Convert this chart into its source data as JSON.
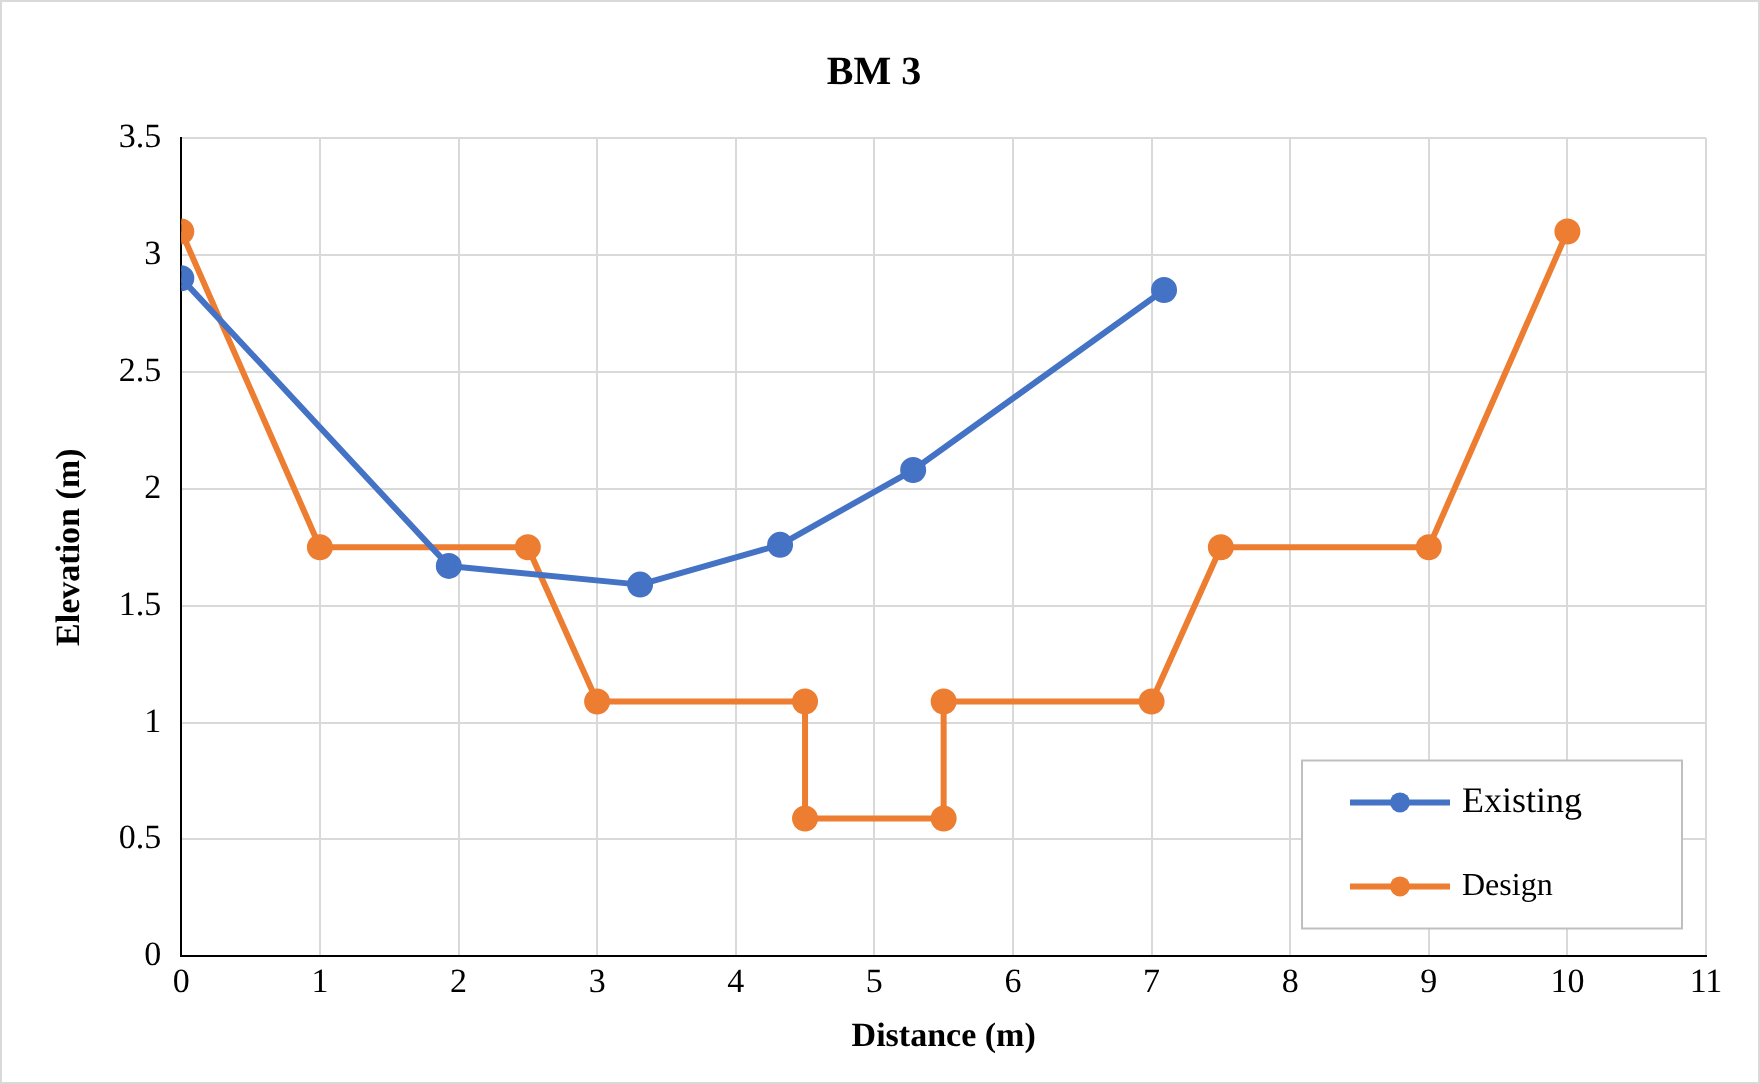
{
  "chart_data": {
    "type": "line",
    "title": "BM 3",
    "xlabel": "Distance (m)",
    "ylabel": "Elevation (m)",
    "xlim": [
      0,
      11
    ],
    "xticks": [
      0,
      1,
      2,
      3,
      4,
      5,
      6,
      7,
      8,
      9,
      10,
      11
    ],
    "ylim": [
      0,
      3.5
    ],
    "yticks": [
      0,
      0.5,
      1,
      1.5,
      2,
      2.5,
      3,
      3.5
    ],
    "grid": true,
    "legend": "bottom right",
    "marker": "circle",
    "line_style": "solid",
    "series": [
      {
        "name": "Existing",
        "color": "#4472c4",
        "x": [
          0,
          1.93,
          3.31,
          4.32,
          5.28,
          7.09
        ],
        "values": [
          2.9,
          1.67,
          1.59,
          1.76,
          2.08,
          2.85
        ]
      },
      {
        "name": "Design",
        "color": "#ed7d31",
        "x": [
          0,
          1,
          2.5,
          3,
          4.5,
          4.5,
          5.5,
          5.5,
          7,
          7.5,
          9,
          10
        ],
        "values": [
          3.1,
          1.75,
          1.75,
          1.09,
          1.09,
          0.59,
          0.59,
          1.09,
          1.09,
          1.75,
          1.75,
          3.1
        ]
      }
    ]
  }
}
